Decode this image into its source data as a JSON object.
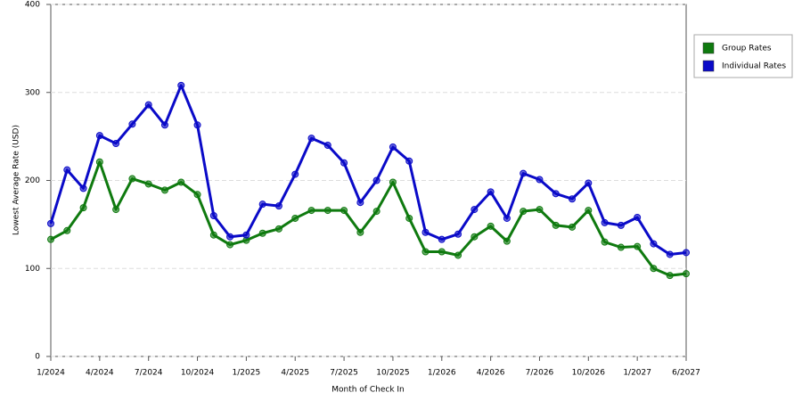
{
  "chart_data": {
    "type": "line",
    "x_label": "Month of Check In",
    "y_label": "Lowest Average Rate (USD)",
    "categories": [
      "1/2024",
      null,
      null,
      "4/2024",
      null,
      null,
      "7/2024",
      null,
      null,
      "10/2024",
      null,
      null,
      "1/2025",
      null,
      null,
      "4/2025",
      null,
      null,
      "7/2025",
      null,
      null,
      "10/2025",
      null,
      null,
      "1/2026",
      null,
      null,
      "4/2026",
      null,
      null,
      "7/2026",
      null,
      null,
      "10/2026",
      null,
      null,
      "1/2027",
      null,
      null,
      "6/2027"
    ],
    "series": [
      {
        "name": "Group Rates",
        "color": "#0f7a0f",
        "values": [
          133,
          143,
          169,
          221,
          167,
          202,
          196,
          189,
          198,
          184,
          138,
          127,
          132,
          140,
          145,
          157,
          166,
          166,
          166,
          141,
          165,
          198,
          157,
          119,
          119,
          115,
          136,
          148,
          131,
          165,
          167,
          149,
          147,
          166,
          130,
          124,
          125,
          100,
          92,
          94
        ]
      },
      {
        "name": "Individual Rates",
        "color": "#0a0ac8",
        "values": [
          151,
          212,
          191,
          251,
          242,
          264,
          286,
          263,
          308,
          263,
          160,
          136,
          138,
          173,
          171,
          207,
          248,
          240,
          220,
          175,
          200,
          238,
          222,
          141,
          133,
          139,
          167,
          187,
          157,
          208,
          201,
          185,
          179,
          197,
          152,
          149,
          158,
          128,
          116,
          118
        ]
      }
    ],
    "ylim": [
      0,
      400
    ],
    "yticks": [
      0,
      100,
      200,
      300,
      400
    ],
    "grid": true,
    "legend": "right"
  }
}
